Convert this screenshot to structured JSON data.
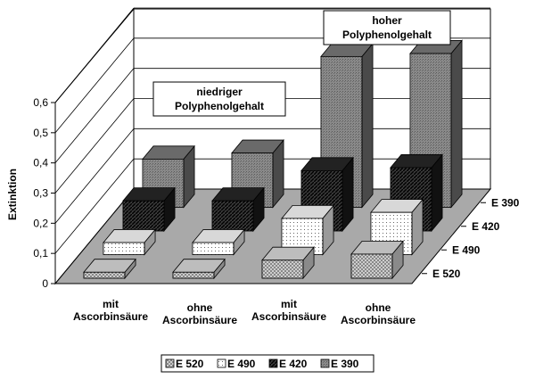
{
  "chart_data": {
    "type": "bar",
    "title": "",
    "xlabel": "",
    "ylabel": "Extinktion",
    "ylim": [
      0,
      0.6
    ],
    "yticks": [
      "0",
      "0,1",
      "0,2",
      "0,3",
      "0,4",
      "0,5",
      "0,6"
    ],
    "categories": [
      [
        "mit",
        "Ascorbinsäure"
      ],
      [
        "ohne",
        "Ascorbinsäure"
      ],
      [
        "mit",
        "Ascorbinsäure"
      ],
      [
        "ohne",
        "Ascorbinsäure"
      ]
    ],
    "series": [
      {
        "name": "E 520",
        "values": [
          0.02,
          0.02,
          0.06,
          0.08
        ],
        "pattern": "cross",
        "color": "#c8c8c8"
      },
      {
        "name": "E 490",
        "values": [
          0.04,
          0.04,
          0.12,
          0.14
        ],
        "pattern": "dots",
        "color": "#ffffff"
      },
      {
        "name": "E 420",
        "values": [
          0.1,
          0.1,
          0.2,
          0.21
        ],
        "pattern": "diagonal",
        "color": "#333333"
      },
      {
        "name": "E 390",
        "values": [
          0.16,
          0.18,
          0.5,
          0.51
        ],
        "pattern": "solid",
        "color": "#808080"
      }
    ],
    "annotations": [
      {
        "lines": [
          "niedriger",
          "Polyphenolgehalt"
        ]
      },
      {
        "lines": [
          "hoher",
          "Polyphenolgehalt"
        ]
      }
    ],
    "grid": true,
    "legend": "bottom"
  }
}
